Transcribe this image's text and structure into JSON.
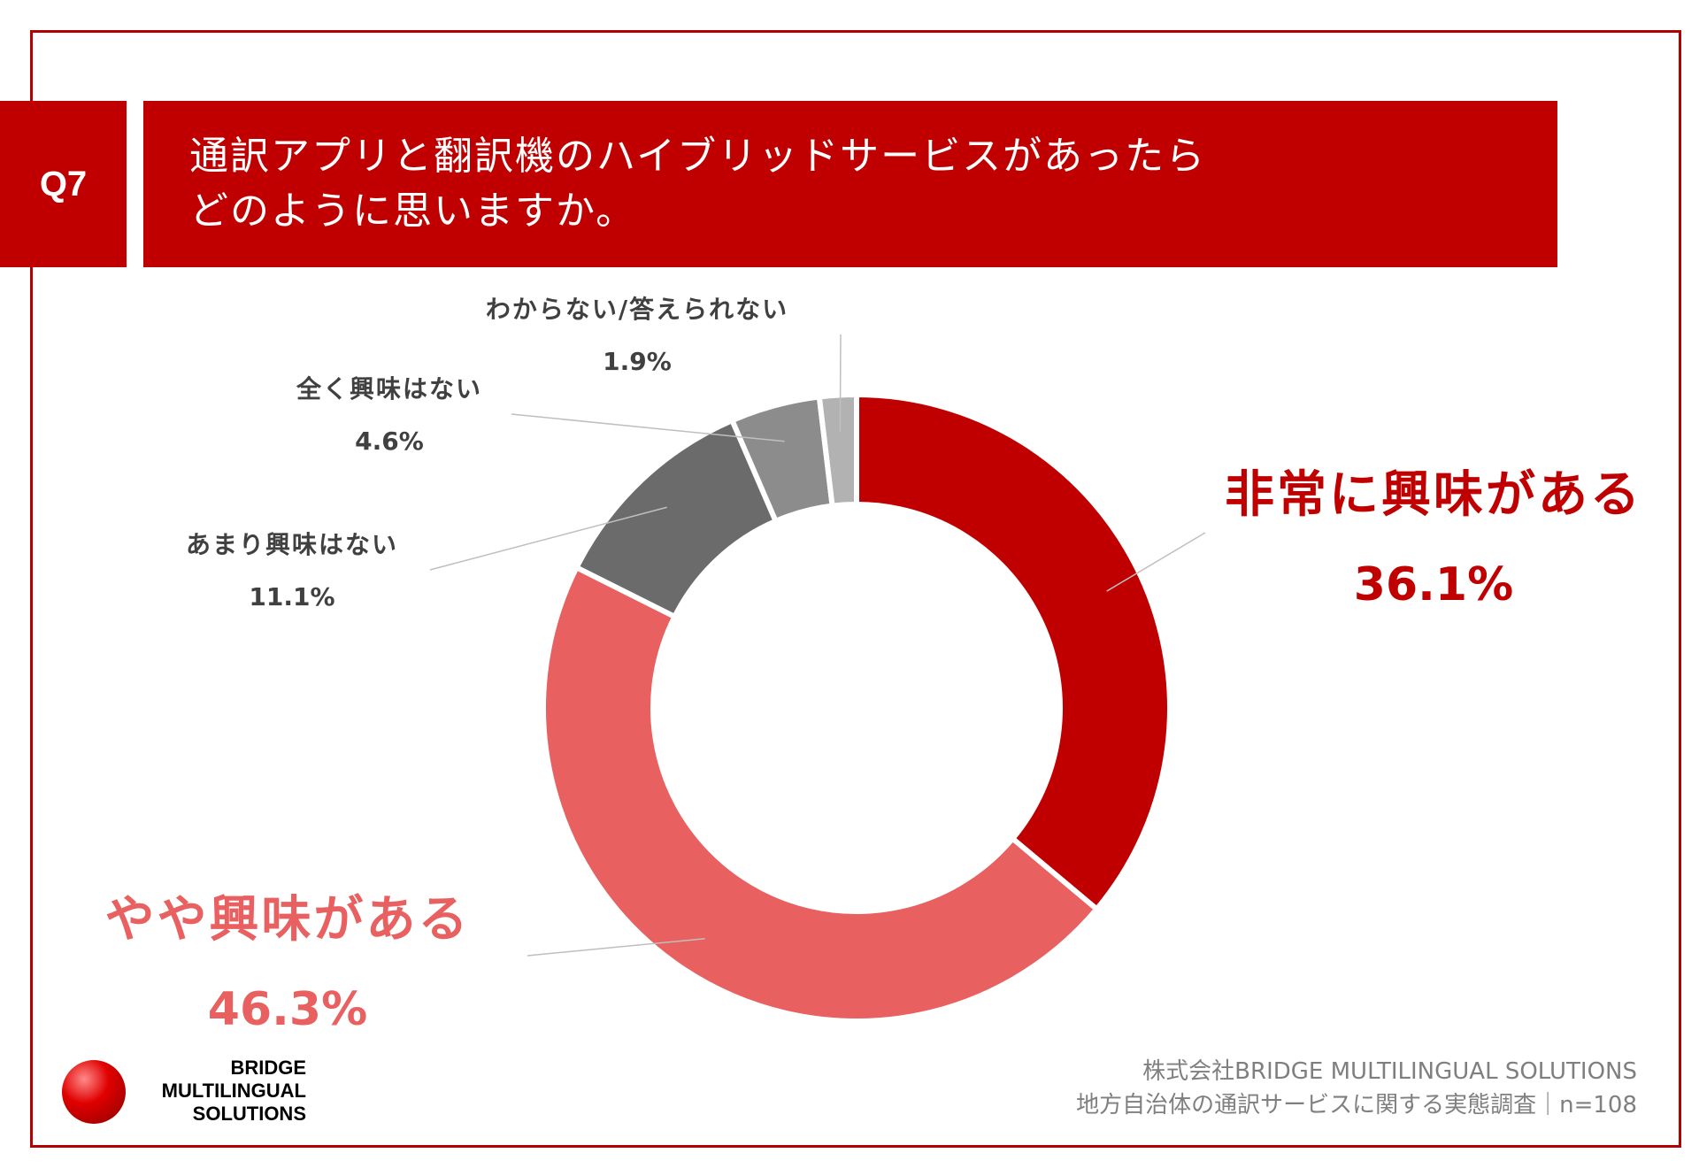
{
  "header": {
    "question_number": "Q7",
    "question_line1": "通訳アプリと翻訳機のハイブリッドサービスがあったら",
    "question_line2": "どのように思いますか。"
  },
  "chart_data": {
    "type": "pie",
    "donut": true,
    "categories": [
      "非常に興味がある",
      "やや興味がある",
      "あまり興味はない",
      "全く興味はない",
      "わからない/答えられない"
    ],
    "values": [
      36.1,
      46.3,
      11.1,
      4.6,
      1.9
    ],
    "value_labels": [
      "36.1%",
      "46.3%",
      "11.1%",
      "4.6%",
      "1.9%"
    ],
    "colors": [
      "#c00000",
      "#e86060",
      "#6b6b6b",
      "#8c8c8c",
      "#b2b2b2"
    ],
    "label_colors": [
      "#c00000",
      "#e86060",
      "#404040",
      "#404040",
      "#404040"
    ]
  },
  "logo": {
    "line1": "BRIDGE",
    "line2": "MULTILINGUAL",
    "line3": "SOLUTIONS"
  },
  "source": {
    "line1": "株式会社BRIDGE MULTILINGUAL SOLUTIONS",
    "line2": "地方自治体の通訳サービスに関する実態調査｜n=108"
  }
}
